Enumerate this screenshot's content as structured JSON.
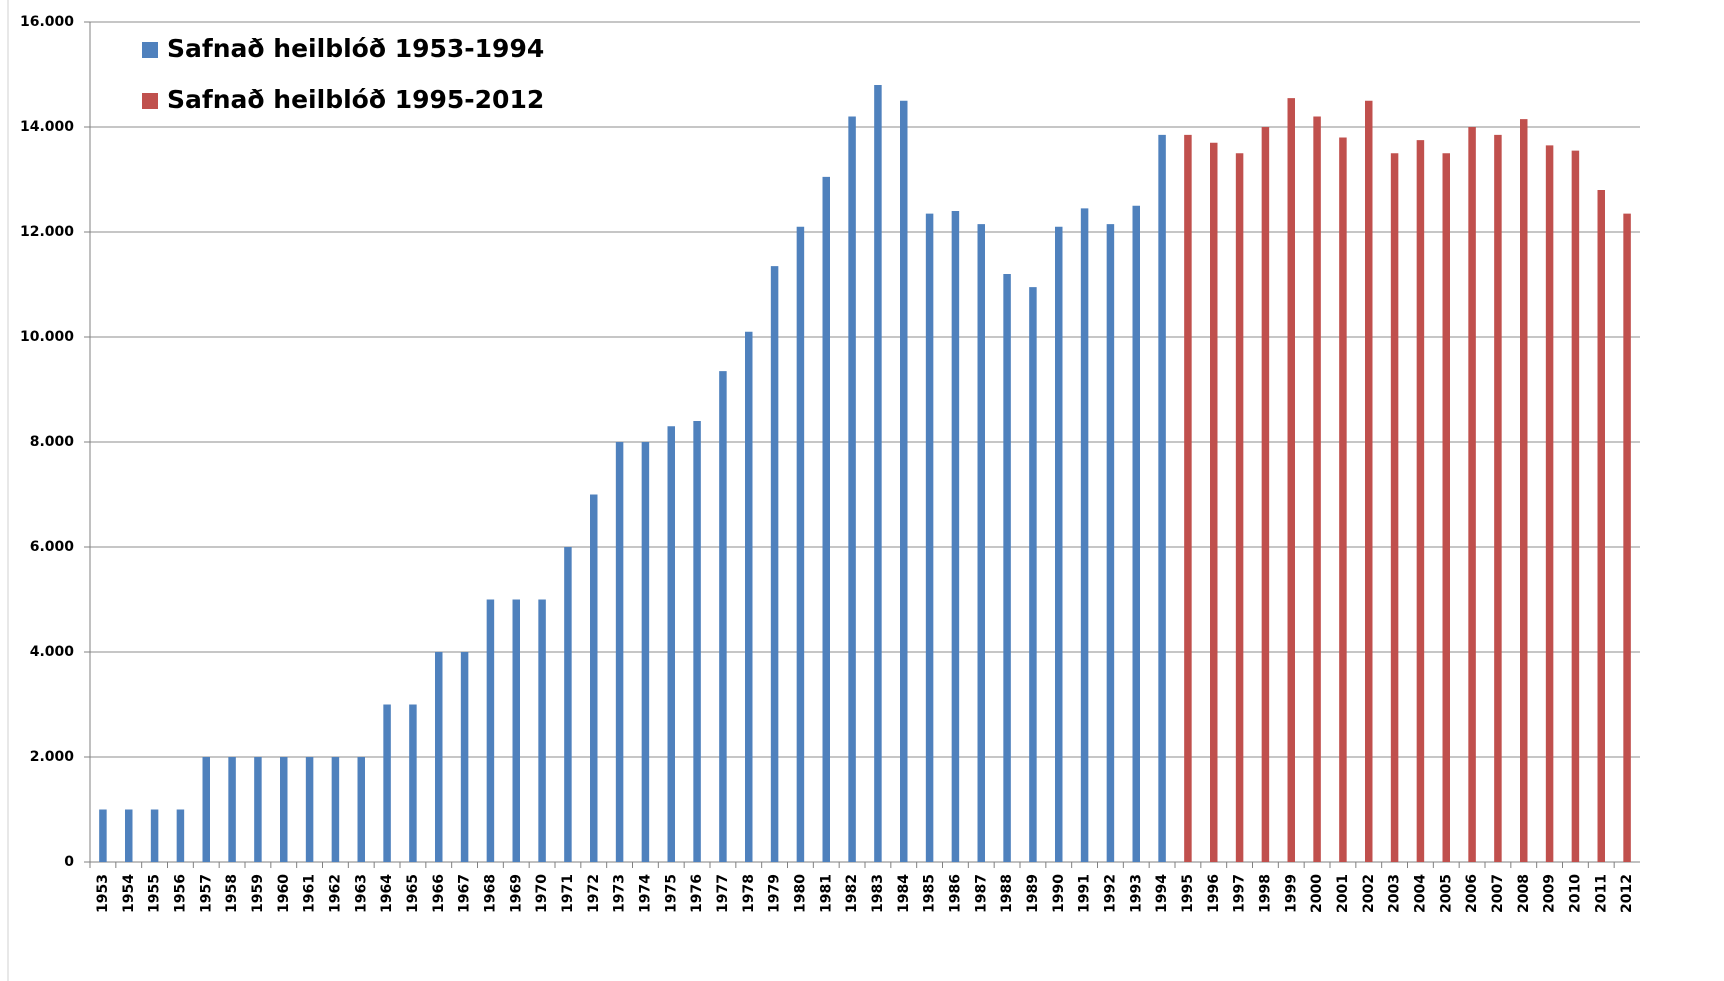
{
  "chart_data": {
    "type": "bar",
    "categories": [
      "1953",
      "1954",
      "1955",
      "1956",
      "1957",
      "1958",
      "1959",
      "1960",
      "1961",
      "1962",
      "1963",
      "1964",
      "1965",
      "1966",
      "1967",
      "1968",
      "1969",
      "1970",
      "1971",
      "1972",
      "1973",
      "1974",
      "1975",
      "1976",
      "1977",
      "1978",
      "1979",
      "1980",
      "1981",
      "1982",
      "1983",
      "1984",
      "1985",
      "1986",
      "1987",
      "1988",
      "1989",
      "1990",
      "1991",
      "1992",
      "1993",
      "1994",
      "1995",
      "1996",
      "1997",
      "1998",
      "1999",
      "2000",
      "2001",
      "2002",
      "2003",
      "2004",
      "2005",
      "2006",
      "2007",
      "2008",
      "2009",
      "2010",
      "2011",
      "2012"
    ],
    "series": [
      {
        "name": "Safnað heilblóð 1953-1994",
        "color": "#4f81bd",
        "values": [
          1000,
          1000,
          1000,
          1000,
          2000,
          2000,
          2000,
          2000,
          2000,
          2000,
          2000,
          3000,
          3000,
          4000,
          4000,
          5000,
          5000,
          5000,
          6000,
          7000,
          8000,
          8000,
          8300,
          8400,
          9350,
          10100,
          11350,
          12100,
          13050,
          14200,
          14800,
          14500,
          12350,
          12400,
          12150,
          11200,
          10950,
          12100,
          12450,
          12150,
          12500,
          13850,
          null,
          null,
          null,
          null,
          null,
          null,
          null,
          null,
          null,
          null,
          null,
          null,
          null,
          null,
          null,
          null,
          null,
          null
        ]
      },
      {
        "name": "Safnað heilblóð 1995-2012",
        "color": "#c0504d",
        "values": [
          null,
          null,
          null,
          null,
          null,
          null,
          null,
          null,
          null,
          null,
          null,
          null,
          null,
          null,
          null,
          null,
          null,
          null,
          null,
          null,
          null,
          null,
          null,
          null,
          null,
          null,
          null,
          null,
          null,
          null,
          null,
          null,
          null,
          null,
          null,
          null,
          null,
          null,
          null,
          null,
          null,
          null,
          13850,
          13700,
          13500,
          14000,
          14550,
          14200,
          13800,
          14500,
          13500,
          13750,
          13500,
          14000,
          13850,
          14150,
          13650,
          13550,
          12800,
          12350
        ]
      }
    ],
    "ylim": [
      0,
      16000
    ],
    "yticks": [
      0,
      {
        "value": 2000,
        "label": "2.000"
      },
      {
        "value": 4000,
        "label": "4.000"
      },
      {
        "value": 6000,
        "label": "6.000"
      },
      {
        "value": 8000,
        "label": "8.000"
      },
      {
        "value": 10000,
        "label": "10.000"
      },
      {
        "value": 12000,
        "label": "12.000"
      },
      {
        "value": 14000,
        "label": "14.000"
      },
      {
        "value": 16000,
        "label": "16.000"
      }
    ],
    "grid": true,
    "legend": "top-left"
  }
}
